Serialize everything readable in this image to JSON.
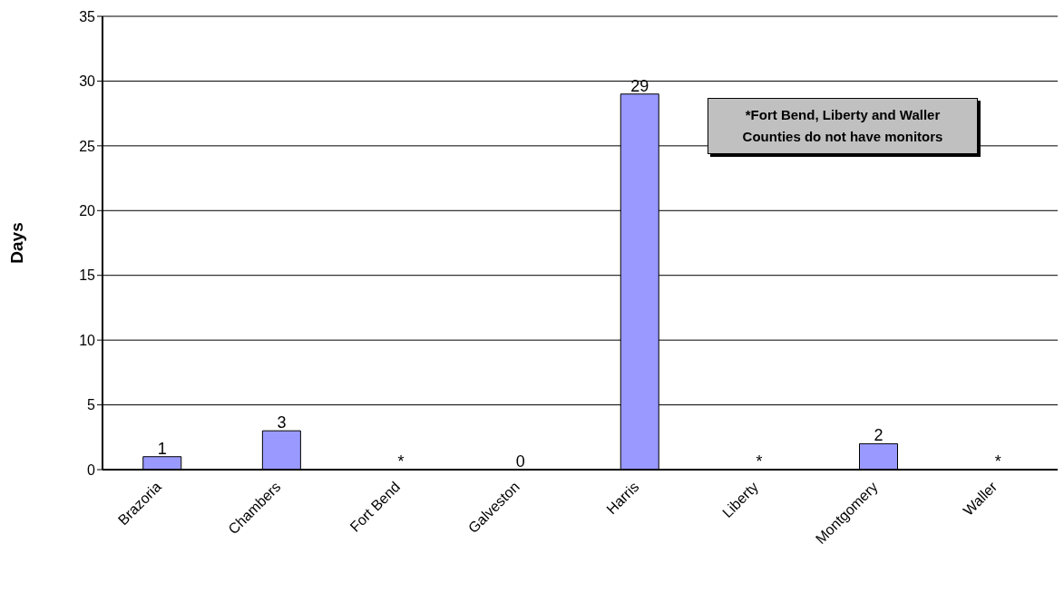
{
  "chart_data": {
    "type": "bar",
    "ylabel": "Days",
    "categories": [
      "Brazoria",
      "Chambers",
      "Fort Bend",
      "Galveston",
      "Harris",
      "Liberty",
      "Montgomery",
      "Waller"
    ],
    "values": [
      1,
      3,
      null,
      0,
      29,
      null,
      2,
      null
    ],
    "value_labels": [
      "1",
      "3",
      "*",
      "0",
      "29",
      "*",
      "2",
      "*"
    ],
    "color": "#9999ff",
    "ylim": [
      0,
      35
    ],
    "yticks": [
      0,
      5,
      10,
      15,
      20,
      25,
      30,
      35
    ],
    "grid": "y",
    "annotations": [
      "*Fort Bend, Liberty and Waller Counties do not have monitors"
    ]
  }
}
